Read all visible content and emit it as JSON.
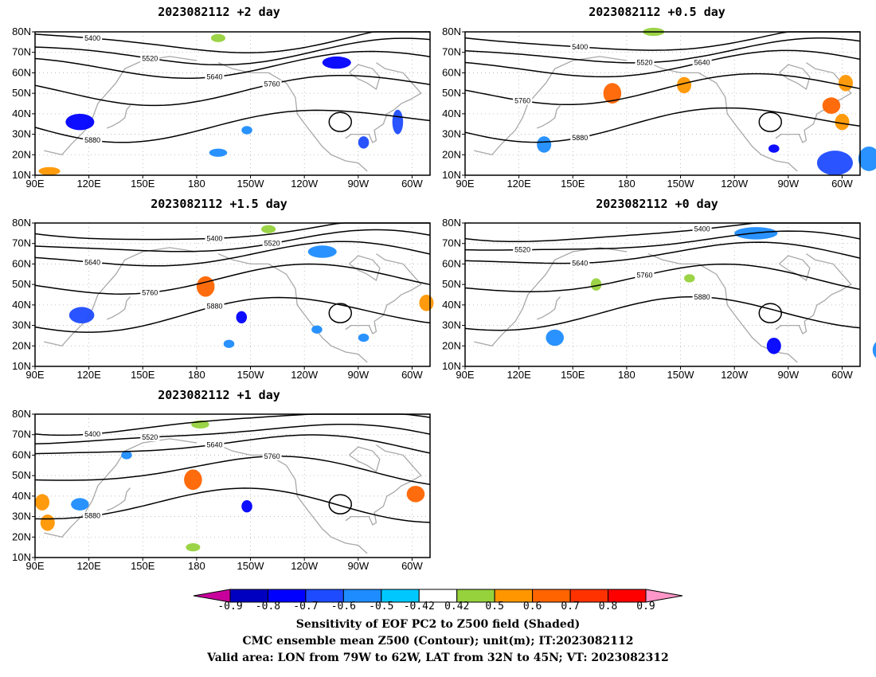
{
  "panels": [
    {
      "id": "p1",
      "title": "2023082112 +2 day",
      "shading": [
        {
          "lon": 115,
          "lat": 36,
          "rx": 8,
          "ry": 4,
          "val": -0.7
        },
        {
          "lon": -102,
          "lat": 65,
          "rx": 8,
          "ry": 3,
          "val": -0.75
        },
        {
          "lon": -68,
          "lat": 36,
          "rx": 3,
          "ry": 6,
          "val": -0.6
        },
        {
          "lon": -87,
          "lat": 26,
          "rx": 3,
          "ry": 3,
          "val": -0.6
        },
        {
          "lon": -152,
          "lat": 32,
          "rx": 3,
          "ry": 2,
          "val": -0.5
        },
        {
          "lon": -168,
          "lat": 21,
          "rx": 5,
          "ry": 2,
          "val": -0.5
        },
        {
          "lon": -168,
          "lat": 77,
          "rx": 4,
          "ry": 2,
          "val": 0.45
        },
        {
          "lon": 98,
          "lat": 12,
          "rx": 6,
          "ry": 2,
          "val": 0.6
        }
      ]
    },
    {
      "id": "p2",
      "title": "2023082112 +0.5 day",
      "shading": [
        {
          "lon": 172,
          "lat": 50,
          "rx": 5,
          "ry": 5,
          "val": 0.65
        },
        {
          "lon": -148,
          "lat": 54,
          "rx": 4,
          "ry": 4,
          "val": 0.6
        },
        {
          "lon": -58,
          "lat": 55,
          "rx": 4,
          "ry": 4,
          "val": 0.6
        },
        {
          "lon": -66,
          "lat": 44,
          "rx": 5,
          "ry": 4,
          "val": 0.65
        },
        {
          "lon": -60,
          "lat": 36,
          "rx": 4,
          "ry": 4,
          "val": 0.55
        },
        {
          "lon": -64,
          "lat": 16,
          "rx": 10,
          "ry": 6,
          "val": -0.6
        },
        {
          "lon": 134,
          "lat": 25,
          "rx": 4,
          "ry": 4,
          "val": -0.5
        },
        {
          "lon": -98,
          "lat": 23,
          "rx": 3,
          "ry": 2,
          "val": -0.7
        },
        {
          "lon": -45,
          "lat": 18,
          "rx": 6,
          "ry": 6,
          "val": -0.5
        },
        {
          "lon": -165,
          "lat": 80,
          "rx": 6,
          "ry": 2,
          "val": 0.45
        }
      ]
    },
    {
      "id": "p3",
      "title": "2023082112 +1.5 day",
      "shading": [
        {
          "lon": 116,
          "lat": 35,
          "rx": 7,
          "ry": 4,
          "val": -0.6
        },
        {
          "lon": -110,
          "lat": 66,
          "rx": 8,
          "ry": 3,
          "val": -0.55
        },
        {
          "lon": -155,
          "lat": 34,
          "rx": 3,
          "ry": 3,
          "val": -0.7
        },
        {
          "lon": -113,
          "lat": 28,
          "rx": 3,
          "ry": 2,
          "val": -0.5
        },
        {
          "lon": -87,
          "lat": 24,
          "rx": 3,
          "ry": 2,
          "val": -0.5
        },
        {
          "lon": -162,
          "lat": 21,
          "rx": 3,
          "ry": 2,
          "val": -0.5
        },
        {
          "lon": -175,
          "lat": 49,
          "rx": 5,
          "ry": 5,
          "val": 0.65
        },
        {
          "lon": -52,
          "lat": 41,
          "rx": 4,
          "ry": 4,
          "val": 0.6
        },
        {
          "lon": -140,
          "lat": 77,
          "rx": 4,
          "ry": 2,
          "val": 0.45
        }
      ]
    },
    {
      "id": "p4",
      "title": "2023082112 +0 day",
      "shading": [
        {
          "lon": -108,
          "lat": 75,
          "rx": 12,
          "ry": 3,
          "val": -0.55
        },
        {
          "lon": -98,
          "lat": 20,
          "rx": 4,
          "ry": 4,
          "val": -0.75
        },
        {
          "lon": 140,
          "lat": 24,
          "rx": 5,
          "ry": 4,
          "val": -0.5
        },
        {
          "lon": -38,
          "lat": 18,
          "rx": 5,
          "ry": 5,
          "val": -0.5
        },
        {
          "lon": 163,
          "lat": 50,
          "rx": 3,
          "ry": 3,
          "val": 0.45
        },
        {
          "lon": -145,
          "lat": 53,
          "rx": 3,
          "ry": 2,
          "val": 0.45
        }
      ]
    },
    {
      "id": "p5",
      "title": "2023082112 +1 day",
      "shading": [
        {
          "lon": 178,
          "lat": 48,
          "rx": 5,
          "ry": 5,
          "val": 0.65
        },
        {
          "lon": -58,
          "lat": 41,
          "rx": 5,
          "ry": 4,
          "val": 0.65
        },
        {
          "lon": 94,
          "lat": 37,
          "rx": 4,
          "ry": 4,
          "val": 0.6
        },
        {
          "lon": 97,
          "lat": 27,
          "rx": 4,
          "ry": 4,
          "val": 0.55
        },
        {
          "lon": 115,
          "lat": 36,
          "rx": 5,
          "ry": 3,
          "val": -0.55
        },
        {
          "lon": -152,
          "lat": 35,
          "rx": 3,
          "ry": 3,
          "val": -0.7
        },
        {
          "lon": 141,
          "lat": 60,
          "rx": 3,
          "ry": 2,
          "val": -0.5
        },
        {
          "lon": -178,
          "lat": 75,
          "rx": 5,
          "ry": 2,
          "val": 0.45
        },
        {
          "lon": 178,
          "lat": 15,
          "rx": 4,
          "ry": 2,
          "val": 0.45
        }
      ]
    }
  ],
  "axes": {
    "lat_labels": [
      "10N",
      "20N",
      "30N",
      "40N",
      "50N",
      "60N",
      "70N",
      "80N"
    ],
    "lon_labels": [
      "90E",
      "120E",
      "150E",
      "180",
      "150W",
      "120W",
      "90W",
      "60W"
    ]
  },
  "contours": [
    {
      "value": 5400,
      "label": "5400",
      "base": 76,
      "amp": 6,
      "phase": 0
    },
    {
      "value": 5520,
      "label": "5520",
      "base": 70,
      "amp": 5,
      "phase": 0.3
    },
    {
      "value": 5640,
      "label": "5640",
      "base": 64,
      "amp": 5,
      "phase": 0.6
    },
    {
      "value": 5760,
      "label": "5760",
      "base": 52,
      "amp": 6,
      "phase": 0.9
    },
    {
      "value": 5880,
      "label": "5880",
      "base": 35,
      "amp": 7,
      "phase": 1.2
    }
  ],
  "colorbar": {
    "ticks": [
      "-0.9",
      "-0.8",
      "-0.7",
      "-0.6",
      "-0.5",
      "-0.42",
      "0.42",
      "0.5",
      "0.6",
      "0.7",
      "0.8",
      "0.9"
    ],
    "colors": [
      "#c8009c",
      "#0000c0",
      "#0000ff",
      "#1e4bff",
      "#1e8cff",
      "#00c8ff",
      "#ffffff",
      "#96d23c",
      "#ff9600",
      "#ff6400",
      "#ff3200",
      "#ff0000",
      "#ff96c8"
    ]
  },
  "caption": {
    "line1": "Sensitivity of EOF PC2 to Z500 field (Shaded)",
    "line2": "CMC ensemble mean Z500 (Contour); unit(m); IT:2023082112",
    "line3": "Valid area: LON from 79W to 62W, LAT from 32N to 45N; VT: 2023082312"
  }
}
